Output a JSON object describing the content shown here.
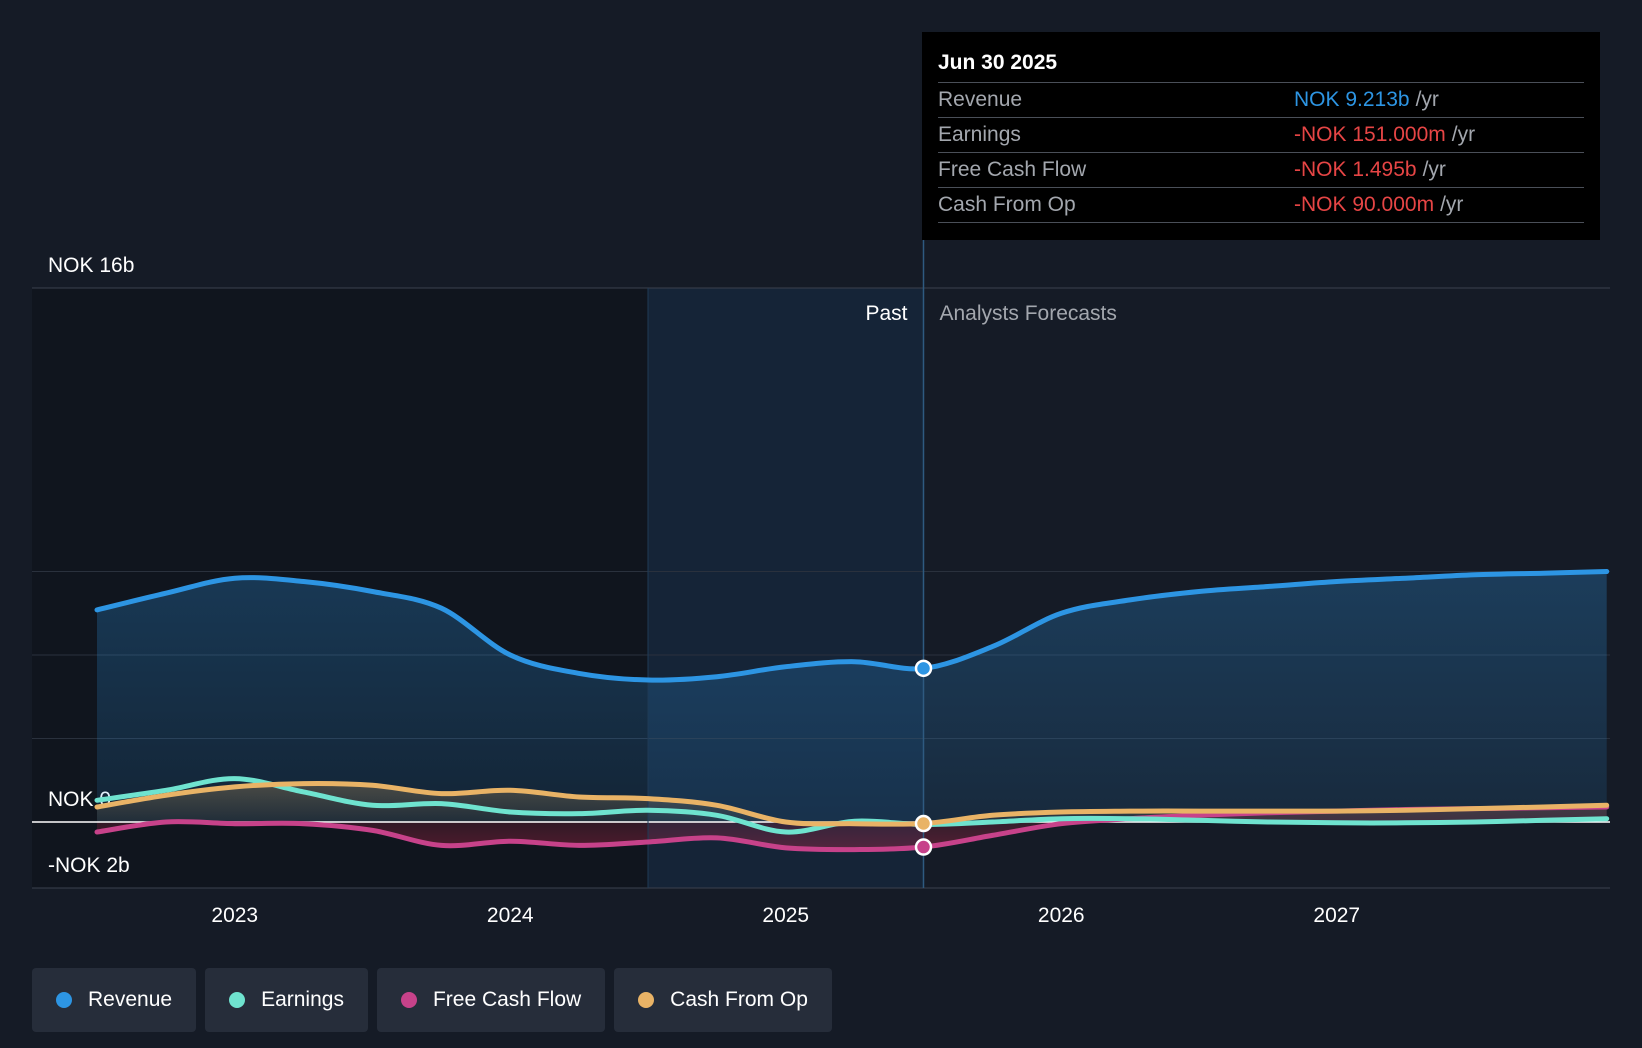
{
  "colors": {
    "background": "#151b26",
    "revenue": "#2d95e3",
    "earnings": "#6fe3cf",
    "free_cash_flow": "#c7428a",
    "cash_from_op": "#e9b366",
    "negative": "#e64545",
    "grid": "#2a313d"
  },
  "tooltip": {
    "date": "Jun 30 2025",
    "rows": [
      {
        "label": "Revenue",
        "value": "NOK 9.213b",
        "unit": "/yr",
        "color": "#2d95e3"
      },
      {
        "label": "Earnings",
        "value": "-NOK 151.000m",
        "unit": "/yr",
        "color": "#e64545"
      },
      {
        "label": "Free Cash Flow",
        "value": "-NOK 1.495b",
        "unit": "/yr",
        "color": "#e64545"
      },
      {
        "label": "Cash From Op",
        "value": "-NOK 90.000m",
        "unit": "/yr",
        "color": "#e64545"
      }
    ]
  },
  "legend": [
    {
      "label": "Revenue",
      "color": "#2d95e3"
    },
    {
      "label": "Earnings",
      "color": "#6fe3cf"
    },
    {
      "label": "Free Cash Flow",
      "color": "#c7428a"
    },
    {
      "label": "Cash From Op",
      "color": "#e9b366"
    }
  ],
  "chart_data": {
    "type": "line",
    "title": "",
    "xlabel": "",
    "ylabel": "",
    "ylim": [
      -2,
      16
    ],
    "y_unit": "NOK billion",
    "y_tick_labels": [
      {
        "value": 16,
        "label": "NOK 16b"
      },
      {
        "value": 0,
        "label": "NOK 0"
      },
      {
        "value": -2,
        "label": "-NOK 2b"
      }
    ],
    "gridlines": [
      15,
      10,
      5
    ],
    "xlim": [
      2022.27,
      2027.98
    ],
    "x_ticks": [
      2023,
      2024,
      2025,
      2026,
      2027
    ],
    "x_tick_labels": [
      "2023",
      "2024",
      "2025",
      "2026",
      "2027"
    ],
    "past_region_start": 2024.5,
    "divider_x": 2025.5,
    "past_label": "Past",
    "forecast_label": "Analysts Forecasts",
    "series": [
      {
        "name": "Revenue",
        "x": [
          2022.5,
          2022.75,
          2023.0,
          2023.25,
          2023.5,
          2023.75,
          2024.0,
          2024.25,
          2024.5,
          2024.75,
          2025.0,
          2025.25,
          2025.5,
          2025.75,
          2026.0,
          2026.25,
          2026.5,
          2026.75,
          2027.0,
          2027.25,
          2027.5,
          2027.75,
          2027.98
        ],
        "values": [
          12.7,
          13.7,
          14.6,
          14.4,
          13.8,
          12.8,
          10.0,
          8.9,
          8.5,
          8.7,
          9.3,
          9.6,
          9.2,
          10.5,
          12.5,
          13.3,
          13.8,
          14.1,
          14.4,
          14.6,
          14.8,
          14.9,
          15.0
        ]
      },
      {
        "name": "Earnings",
        "x": [
          2022.5,
          2022.75,
          2023.0,
          2023.25,
          2023.5,
          2023.75,
          2024.0,
          2024.25,
          2024.5,
          2024.75,
          2025.0,
          2025.25,
          2025.5,
          2025.75,
          2026.0,
          2026.25,
          2026.5,
          2026.75,
          2027.0,
          2027.25,
          2027.5,
          2027.75,
          2027.98
        ],
        "values": [
          1.3,
          1.9,
          2.6,
          1.8,
          1.0,
          1.1,
          0.6,
          0.5,
          0.7,
          0.4,
          -0.6,
          0.05,
          -0.15,
          0.0,
          0.2,
          0.2,
          0.1,
          0.0,
          -0.05,
          -0.05,
          0.0,
          0.1,
          0.2
        ]
      },
      {
        "name": "Free Cash Flow",
        "x": [
          2022.5,
          2022.75,
          2023.0,
          2023.25,
          2023.5,
          2023.75,
          2024.0,
          2024.25,
          2024.5,
          2024.75,
          2025.0,
          2025.25,
          2025.5,
          2025.75,
          2026.0,
          2026.25,
          2026.5,
          2026.75,
          2027.0,
          2027.25,
          2027.5,
          2027.75,
          2027.98
        ],
        "values": [
          -0.6,
          0.0,
          -0.1,
          -0.1,
          -0.5,
          -1.4,
          -1.15,
          -1.4,
          -1.2,
          -0.95,
          -1.55,
          -1.65,
          -1.5,
          -0.8,
          -0.1,
          0.2,
          0.4,
          0.55,
          0.65,
          0.75,
          0.8,
          0.85,
          0.9
        ]
      },
      {
        "name": "Cash From Op",
        "x": [
          2022.5,
          2022.75,
          2023.0,
          2023.25,
          2023.5,
          2023.75,
          2024.0,
          2024.25,
          2024.5,
          2024.75,
          2025.0,
          2025.25,
          2025.5,
          2025.75,
          2026.0,
          2026.25,
          2026.5,
          2026.75,
          2027.0,
          2027.25,
          2027.5,
          2027.75,
          2027.98
        ],
        "values": [
          0.9,
          1.6,
          2.1,
          2.3,
          2.2,
          1.7,
          1.9,
          1.5,
          1.4,
          1.0,
          0.0,
          -0.1,
          -0.09,
          0.4,
          0.6,
          0.65,
          0.65,
          0.65,
          0.65,
          0.7,
          0.8,
          0.9,
          1.0
        ]
      }
    ]
  }
}
